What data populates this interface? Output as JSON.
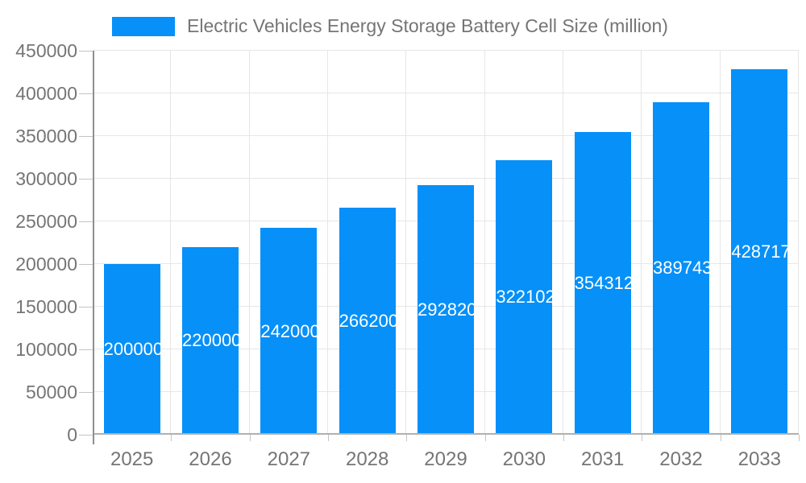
{
  "legend": {
    "label": "Electric Vehicles Energy Storage Battery Cell Size (million)"
  },
  "colors": {
    "bar": "#0690f8",
    "grid": "#e6e6e6",
    "axis": "#b0b0b0",
    "text": "#757575",
    "bar_label": "#ffffff"
  },
  "chart_data": {
    "type": "bar",
    "title": "Electric Vehicles Energy Storage Battery Cell Size (million)",
    "categories": [
      "2025",
      "2026",
      "2027",
      "2028",
      "2029",
      "2030",
      "2031",
      "2032",
      "2033"
    ],
    "values": [
      200000,
      220000,
      242000,
      266200,
      292820,
      322102,
      354312,
      389743,
      428717
    ],
    "xlabel": "",
    "ylabel": "",
    "ylim": [
      0,
      450000
    ],
    "y_ticks": [
      0,
      50000,
      100000,
      150000,
      200000,
      250000,
      300000,
      350000,
      400000,
      450000
    ],
    "grid": true,
    "legend_position": "top",
    "value_labels": "inside-center"
  }
}
